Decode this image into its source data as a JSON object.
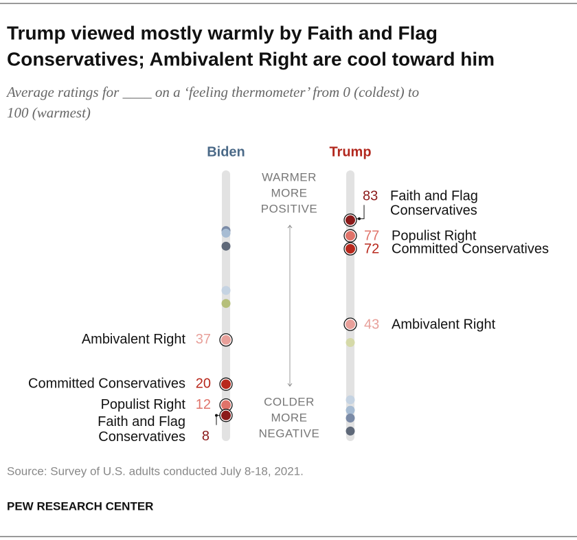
{
  "chart_data": {
    "type": "dot",
    "title": [
      "Trump viewed mostly warmly by Faith and Flag",
      "Conservatives; Ambivalent Right are cool toward him"
    ],
    "subtitle": [
      "Average ratings for ____ on a ‘feeling thermometer’ from 0 (coldest) to",
      "100 (warmest)"
    ],
    "ylim": [
      0,
      100
    ],
    "annotations": {
      "warmer": [
        "WARMER",
        "MORE",
        "POSITIVE"
      ],
      "colder": [
        "COLDER",
        "MORE",
        "NEGATIVE"
      ]
    },
    "series": [
      {
        "name": "Biden",
        "color": "#4b6a88",
        "points": [
          {
            "value": 79,
            "color": "#7a8aa6"
          },
          {
            "value": 78,
            "color": "#a7bcd3"
          },
          {
            "value": 73,
            "color": "#5e6878"
          },
          {
            "value": 56,
            "color": "#c5d3e2"
          },
          {
            "value": 51,
            "color": "#b5bf7a"
          },
          {
            "label": "Ambivalent Right",
            "value": 37,
            "color": "#e8a09a"
          },
          {
            "label": "Committed Conservatives",
            "value": 20,
            "color": "#b8281c"
          },
          {
            "label": "Populist Right",
            "value": 12,
            "color": "#e0736a"
          },
          {
            "label": [
              "Faith and Flag",
              "Conservatives"
            ],
            "value": 8,
            "color": "#8b1a1a"
          }
        ]
      },
      {
        "name": "Trump",
        "color": "#b2281e",
        "points": [
          {
            "label": [
              "Faith and Flag",
              "Conservatives"
            ],
            "value": 83,
            "color": "#8b1a1a"
          },
          {
            "label": "Populist Right",
            "value": 77,
            "color": "#e0736a"
          },
          {
            "label": "Committed Conservatives",
            "value": 72,
            "color": "#b8281c"
          },
          {
            "label": "Ambivalent Right",
            "value": 43,
            "color": "#e8a09a"
          },
          {
            "value": 36,
            "color": "#d5d9a8"
          },
          {
            "value": 14,
            "color": "#c5d3e2"
          },
          {
            "value": 10,
            "color": "#a7bcd3"
          },
          {
            "value": 7,
            "color": "#7a8aa6"
          },
          {
            "value": 2,
            "color": "#5e6878"
          }
        ]
      }
    ],
    "source": "Source: Survey of U.S. adults conducted July 8-18, 2021.",
    "credit": "PEW RESEARCH CENTER"
  }
}
